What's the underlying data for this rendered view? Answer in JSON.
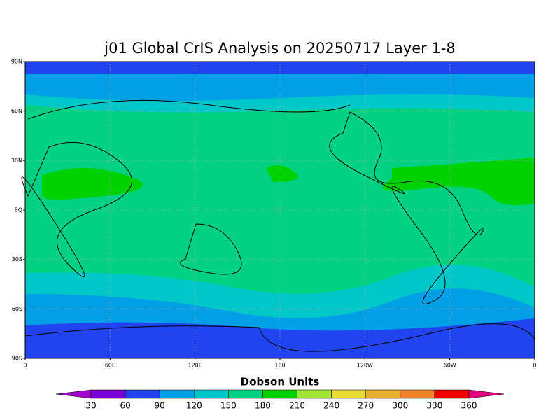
{
  "title": "j01 Global CrIS Analysis on 20250717 Layer 1-8",
  "map": {
    "lonlim": [
      0,
      360
    ],
    "latlim": [
      -90,
      90
    ],
    "lonticks": [
      0,
      {
        "value": 60,
        "label": "60E"
      },
      {
        "value": 120,
        "label": "120E"
      },
      180,
      {
        "value": 240,
        "label": "120W"
      },
      {
        "value": 300,
        "label": "60W"
      },
      {
        "value": 360,
        "label": "0"
      }
    ],
    "latticks": [
      {
        "value": 90,
        "label": "90N"
      },
      {
        "value": 60,
        "label": "60N"
      },
      {
        "value": 30,
        "label": "30N"
      },
      {
        "value": 0,
        "label": "EQ"
      },
      {
        "value": -30,
        "label": "30S"
      },
      {
        "value": -60,
        "label": "60S"
      },
      {
        "value": -90,
        "label": "90S"
      }
    ],
    "grid": true
  },
  "colorbar": {
    "label": "Dobson Units",
    "ticks": [
      30,
      60,
      90,
      120,
      150,
      180,
      210,
      240,
      270,
      300,
      330,
      360
    ],
    "colors": [
      "#a000c8",
      "#7800d8",
      "#2044f0",
      "#00a0e6",
      "#00c8c8",
      "#00d282",
      "#00d200",
      "#a0e632",
      "#e6dc32",
      "#e6af2d",
      "#f08228",
      "#f00000",
      "#e6007f"
    ]
  }
}
